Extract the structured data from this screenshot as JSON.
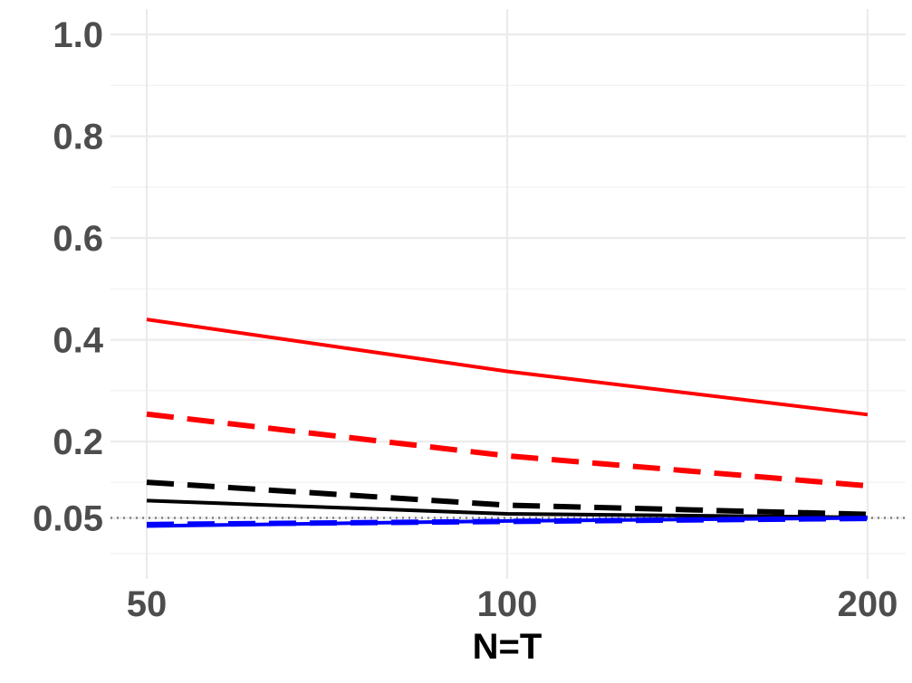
{
  "chart_data": {
    "type": "line",
    "title": "",
    "xlabel": "N=T",
    "ylabel": "",
    "x": [
      50,
      100,
      200
    ],
    "x_scale": "categorical",
    "ylim": [
      -0.07,
      1.05
    ],
    "x_ticks": [
      "50",
      "100",
      "200"
    ],
    "y_ticks": [
      {
        "value": 0.05,
        "label": "0.05"
      },
      {
        "value": 0.2,
        "label": "0.2"
      },
      {
        "value": 0.4,
        "label": "0.4"
      },
      {
        "value": 0.6,
        "label": "0.6"
      },
      {
        "value": 0.8,
        "label": "0.8"
      },
      {
        "value": 1.0,
        "label": "1.0"
      }
    ],
    "y_minor_gridlines": [
      -0.02,
      0.12,
      0.3,
      0.5,
      0.7,
      0.9
    ],
    "grid": true,
    "legend": "none",
    "reference_line": {
      "value": 0.05,
      "style": "dotted",
      "color": "#808080"
    },
    "series": [
      {
        "values": [
          0.44,
          0.338,
          0.253
        ],
        "color": "#ff0000",
        "dash": "solid"
      },
      {
        "values": [
          0.254,
          0.172,
          0.113
        ],
        "color": "#ff0000",
        "dash": "dashed"
      },
      {
        "values": [
          0.12,
          0.075,
          0.057
        ],
        "color": "#000000",
        "dash": "dashed"
      },
      {
        "values": [
          0.084,
          0.058,
          0.051
        ],
        "color": "#000000",
        "dash": "solid"
      },
      {
        "values": [
          0.037,
          0.043,
          0.049
        ],
        "color": "#0000ff",
        "dash": "dashed"
      },
      {
        "values": [
          0.034,
          0.044,
          0.05
        ],
        "color": "#0000ff",
        "dash": "solid"
      }
    ]
  }
}
